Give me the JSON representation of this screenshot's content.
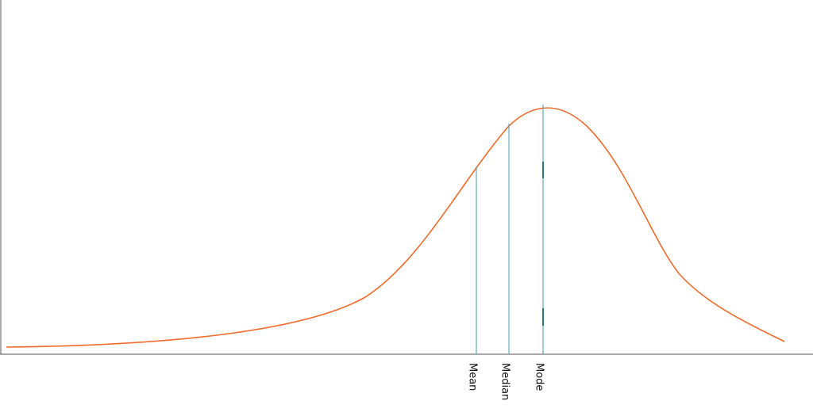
{
  "labels": [
    "Mean",
    "Median",
    "Mode"
  ]
}
